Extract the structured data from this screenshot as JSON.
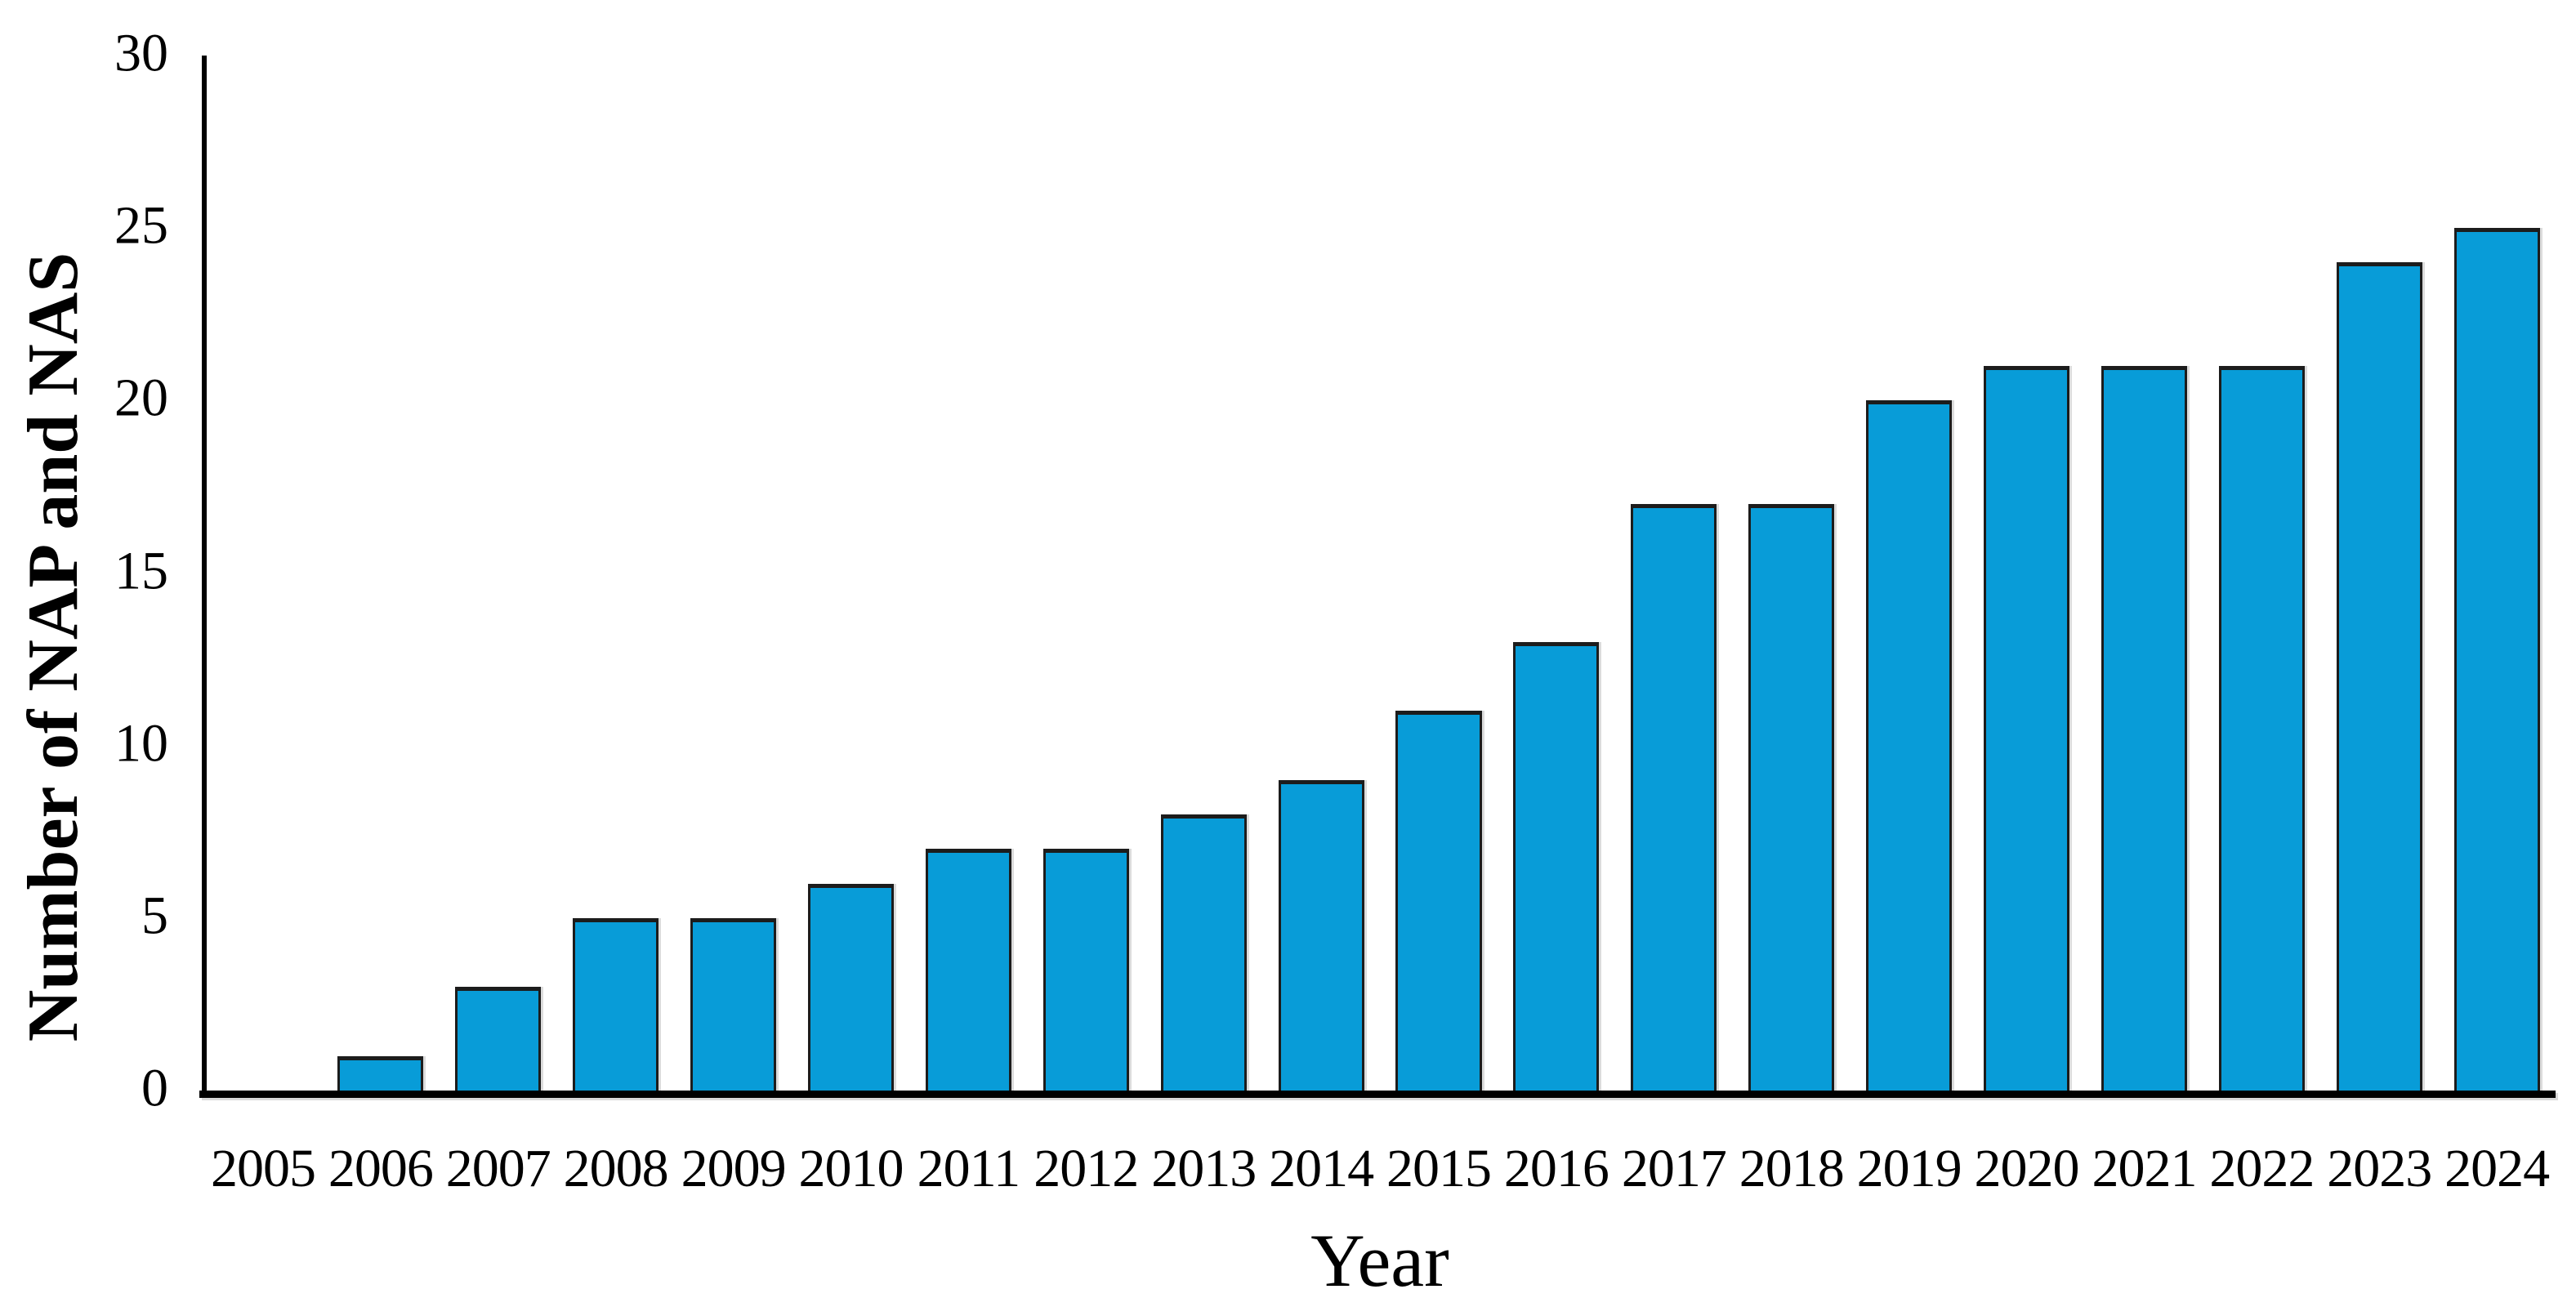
{
  "figure": {
    "background": "#ffffff"
  },
  "chart_data": {
    "type": "bar",
    "title": "",
    "xlabel": "Year",
    "ylabel": "Number of NAP and NAS",
    "categories": [
      "2005",
      "2006",
      "2007",
      "2008",
      "2009",
      "2010",
      "2011",
      "2012",
      "2013",
      "2014",
      "2015",
      "2016",
      "2017",
      "2018",
      "2019",
      "2020",
      "2021",
      "2022",
      "2023",
      "2024"
    ],
    "values": [
      0,
      1,
      3,
      5,
      5,
      6,
      7,
      7,
      8,
      9,
      11,
      13,
      17,
      17,
      20,
      21,
      21,
      21,
      24,
      25
    ],
    "ylim": [
      0,
      30
    ],
    "yticks": [
      0,
      5,
      10,
      15,
      20,
      25,
      30
    ],
    "grid": false,
    "legend_visible": false,
    "bar_color": "#089CD8",
    "bar_border_color": "#1C1C1C",
    "axis_color": "#000000",
    "text_color": "#000000"
  }
}
